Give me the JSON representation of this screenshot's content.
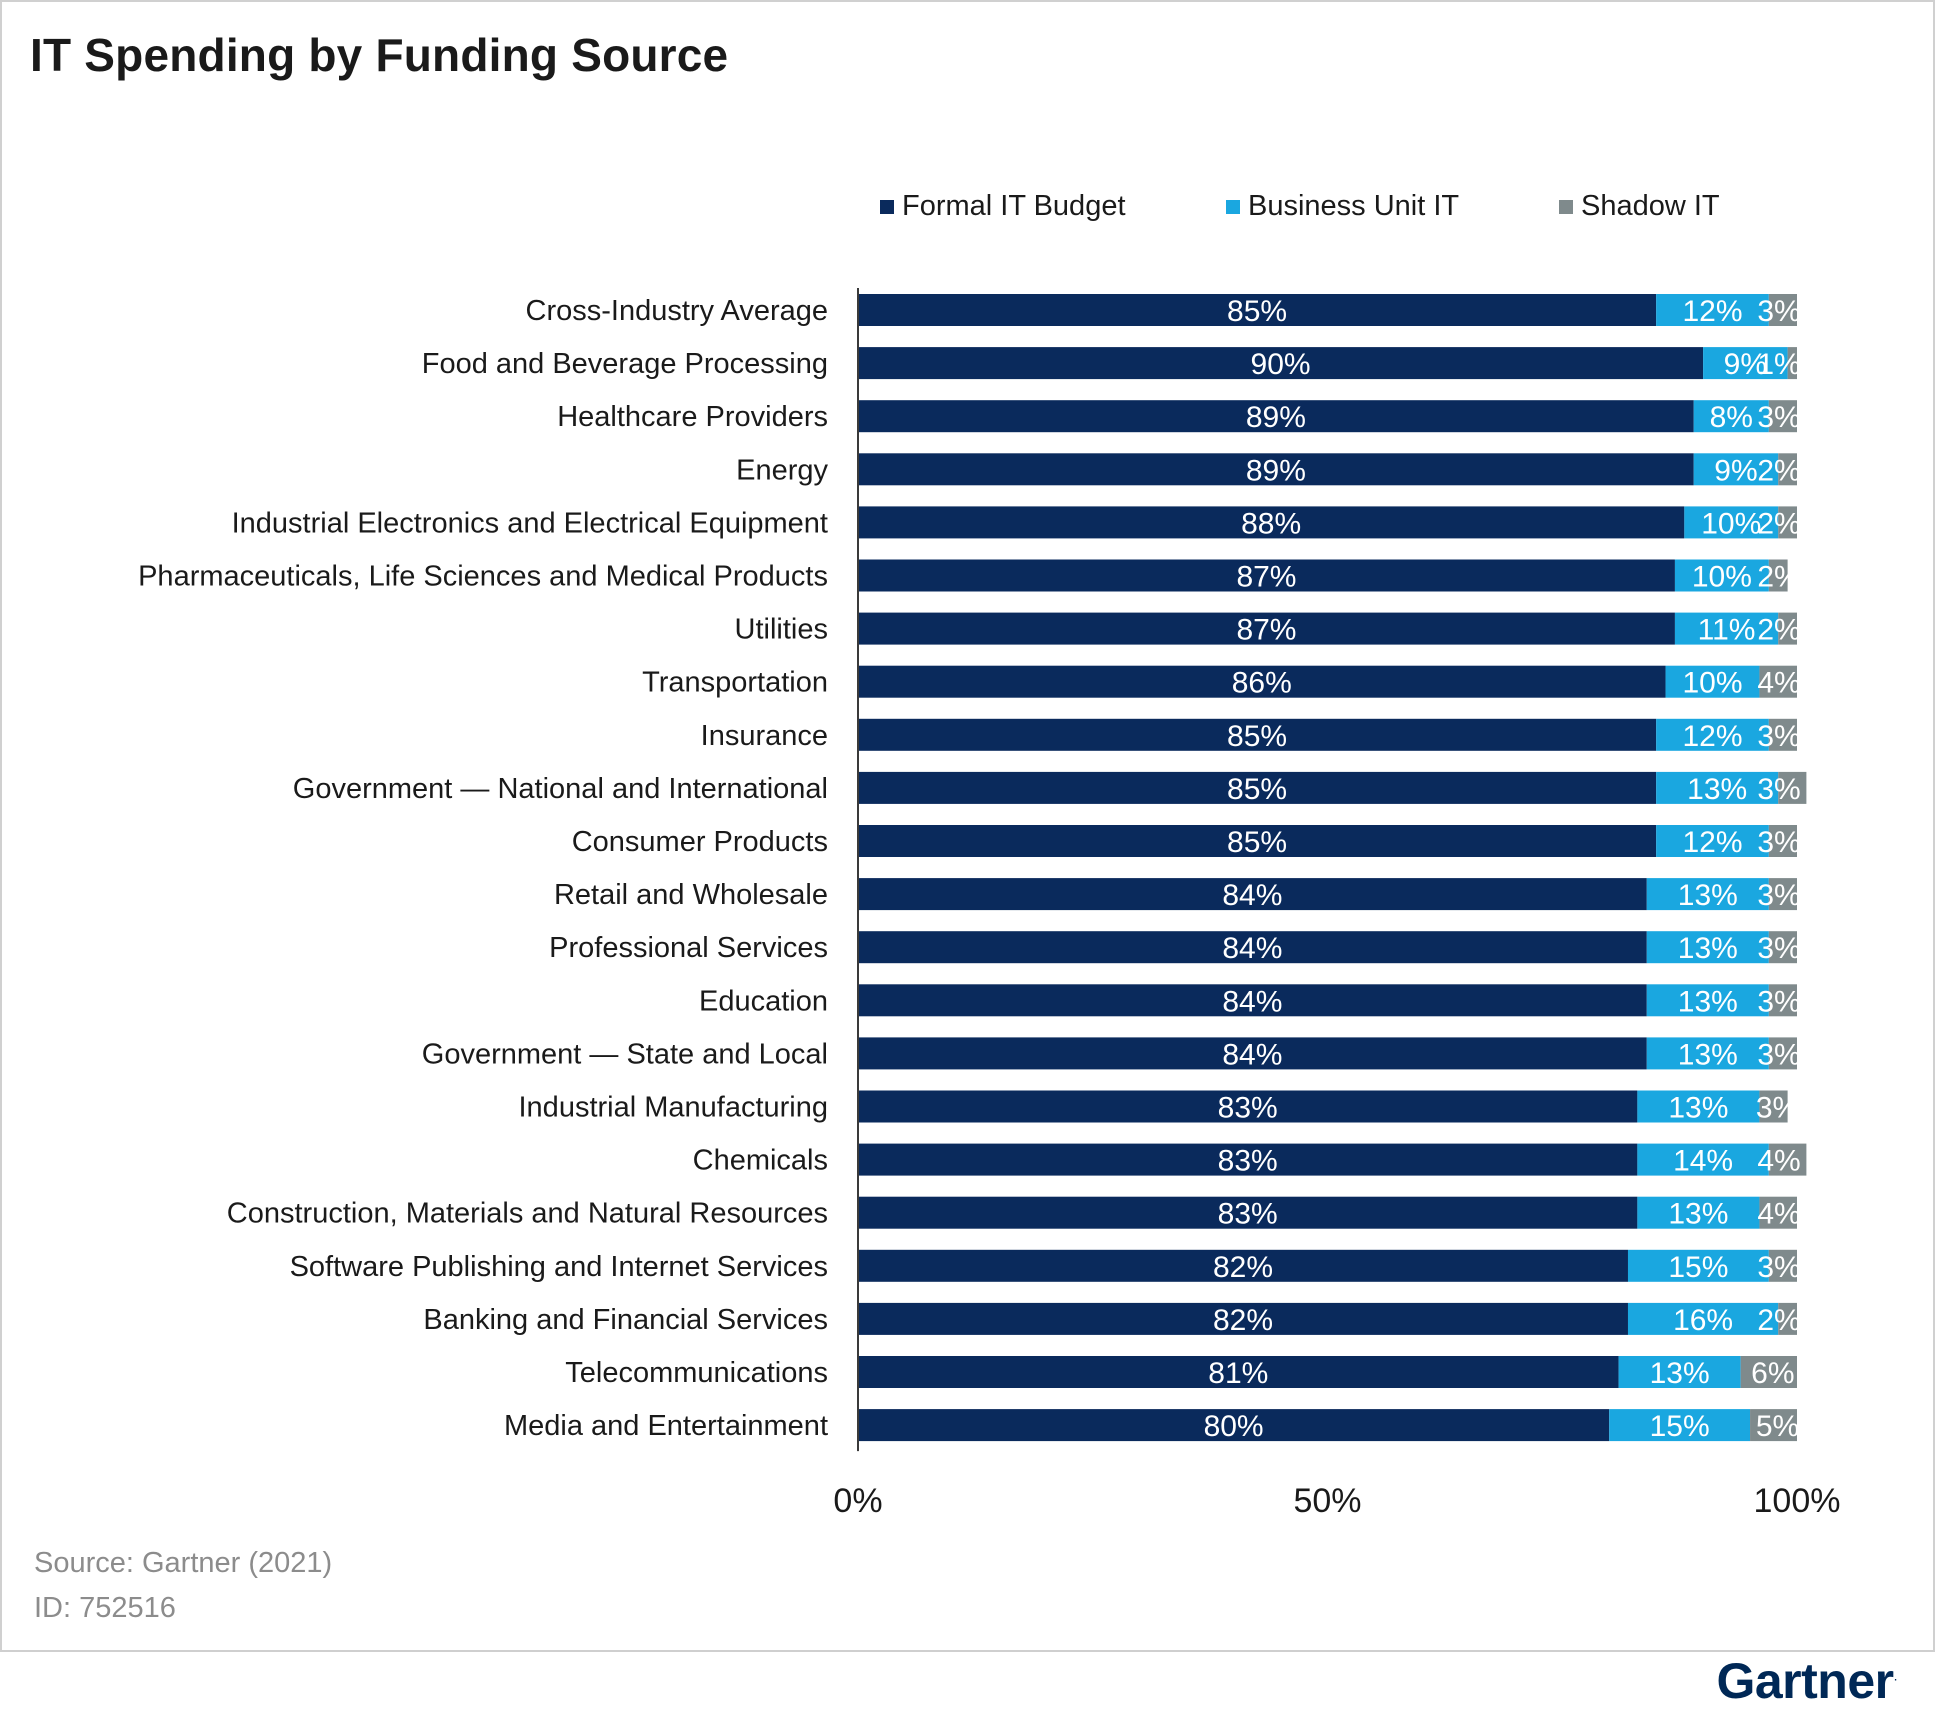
{
  "chart_data": {
    "type": "bar",
    "orientation": "horizontal",
    "stacked": true,
    "title": "IT Spending by Funding Source",
    "categories": [
      "Cross-Industry Average",
      "Food and Beverage Processing",
      "Healthcare Providers",
      "Energy",
      "Industrial Electronics and Electrical Equipment",
      "Pharmaceuticals, Life Sciences and Medical Products",
      "Utilities",
      "Transportation",
      "Insurance",
      "Government  — National and International",
      "Consumer Products",
      "Retail and Wholesale",
      "Professional Services",
      "Education",
      "Government  — State and Local",
      "Industrial Manufacturing",
      "Chemicals",
      "Construction, Materials and Natural Resources",
      "Software Publishing and Internet Services",
      "Banking and Financial Services",
      "Telecommunications",
      "Media and Entertainment"
    ],
    "series": [
      {
        "name": "Formal IT Budget",
        "color": "#0a2a5c",
        "values": [
          85,
          90,
          89,
          89,
          88,
          87,
          87,
          86,
          85,
          85,
          85,
          84,
          84,
          84,
          84,
          83,
          83,
          83,
          82,
          82,
          81,
          80
        ]
      },
      {
        "name": "Business Unit IT",
        "color": "#1aa7e0",
        "values": [
          12,
          9,
          8,
          9,
          10,
          10,
          11,
          10,
          12,
          13,
          12,
          13,
          13,
          13,
          13,
          13,
          14,
          13,
          15,
          16,
          13,
          15
        ]
      },
      {
        "name": "Shadow IT",
        "color": "#7f8a8c",
        "values": [
          3,
          1,
          3,
          2,
          2,
          2,
          2,
          4,
          3,
          3,
          3,
          3,
          3,
          3,
          3,
          3,
          4,
          4,
          3,
          2,
          6,
          5
        ]
      }
    ],
    "value_labels": [
      [
        "85%",
        "12%",
        "3%"
      ],
      [
        "90%",
        "9%",
        "1%"
      ],
      [
        "89%",
        "8%",
        "3%"
      ],
      [
        "89%",
        "9%",
        "2%"
      ],
      [
        "88%",
        "10%",
        "2%"
      ],
      [
        "87%",
        "10%",
        "2%"
      ],
      [
        "87%",
        "11%",
        "2%"
      ],
      [
        "86%",
        "10%",
        "4%"
      ],
      [
        "85%",
        "12%",
        "3%"
      ],
      [
        "85%",
        "13%",
        "3%"
      ],
      [
        "85%",
        "12%",
        "3%"
      ],
      [
        "84%",
        "13%",
        "3%"
      ],
      [
        "84%",
        "13%",
        "3%"
      ],
      [
        "84%",
        "13%",
        "3%"
      ],
      [
        "84%",
        "13%",
        "3%"
      ],
      [
        "83%",
        "13%",
        "3%"
      ],
      [
        "83%",
        "14%",
        "4%"
      ],
      [
        "83%",
        "13%",
        "4%"
      ],
      [
        "82%",
        "15%",
        "3%"
      ],
      [
        "82%",
        "16%",
        "2%"
      ],
      [
        "81%",
        "13%",
        "6%"
      ],
      [
        "80%",
        "15%",
        "5%"
      ]
    ],
    "xlim": [
      0,
      100
    ],
    "xticks": [
      "0%",
      "50%",
      "100%"
    ],
    "xlabel": "",
    "ylabel": "",
    "grid": false,
    "legend_position": "top"
  },
  "footer": {
    "source": "Source: Gartner (2021)",
    "id": "ID: 752516",
    "brand": "Gartner"
  }
}
